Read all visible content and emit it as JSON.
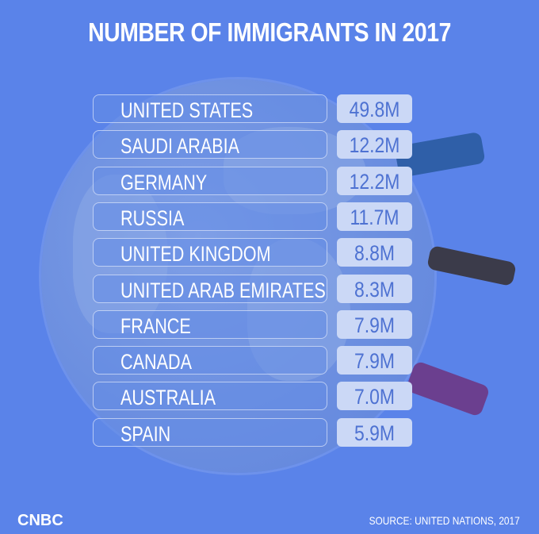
{
  "header": {
    "title": "NUMBER OF IMMIGRANTS IN 2017"
  },
  "table": {
    "rows": [
      [
        "UNITED STATES",
        "49.8M"
      ],
      [
        "SAUDI ARABIA",
        "12.2M"
      ],
      [
        "GERMANY",
        "12.2M"
      ],
      [
        "RUSSIA",
        "11.7M"
      ],
      [
        "UNITED KINGDOM",
        "8.8M"
      ],
      [
        "UNITED ARAB EMIRATES",
        "8.3M"
      ],
      [
        "FRANCE",
        "7.9M"
      ],
      [
        "CANADA",
        "7.9M"
      ],
      [
        "AUSTRALIA",
        "7.0M"
      ],
      [
        "SPAIN",
        "5.9M"
      ]
    ]
  },
  "footer": {
    "logo": "CNBC",
    "source": "SOURCE: UNITED NATIONS, 2017"
  }
}
